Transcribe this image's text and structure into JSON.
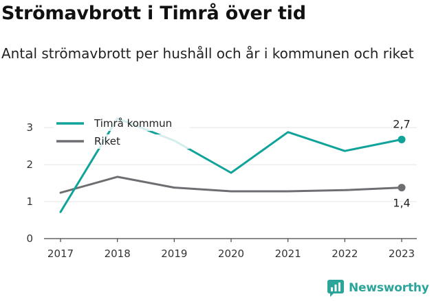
{
  "header": {
    "title": "Strömavbrott i Timrå över tid",
    "subtitle": "Antal strömavbrott per hushåll och år i kommunen och riket"
  },
  "brand": {
    "name": "Newsworthy",
    "icon": "newsworthy-logo-icon",
    "color": "#2ba49a"
  },
  "chart_data": {
    "type": "line",
    "categories": [
      "2017",
      "2018",
      "2019",
      "2020",
      "2021",
      "2022",
      "2023"
    ],
    "ylim": [
      0,
      3.3
    ],
    "yticks": [
      0,
      1,
      2,
      3
    ],
    "grid": true,
    "legend": "top-left",
    "series": [
      {
        "name": "Timrå kommun",
        "color": "#11a39a",
        "values": [
          0.72,
          3.25,
          2.65,
          1.78,
          2.88,
          2.37,
          2.68
        ],
        "end_label": "2,7",
        "end_label_position": "above"
      },
      {
        "name": "Riket",
        "color": "#6e6e72",
        "values": [
          1.24,
          1.67,
          1.38,
          1.28,
          1.28,
          1.31,
          1.38
        ],
        "end_label": "1,4",
        "end_label_position": "below"
      }
    ]
  }
}
